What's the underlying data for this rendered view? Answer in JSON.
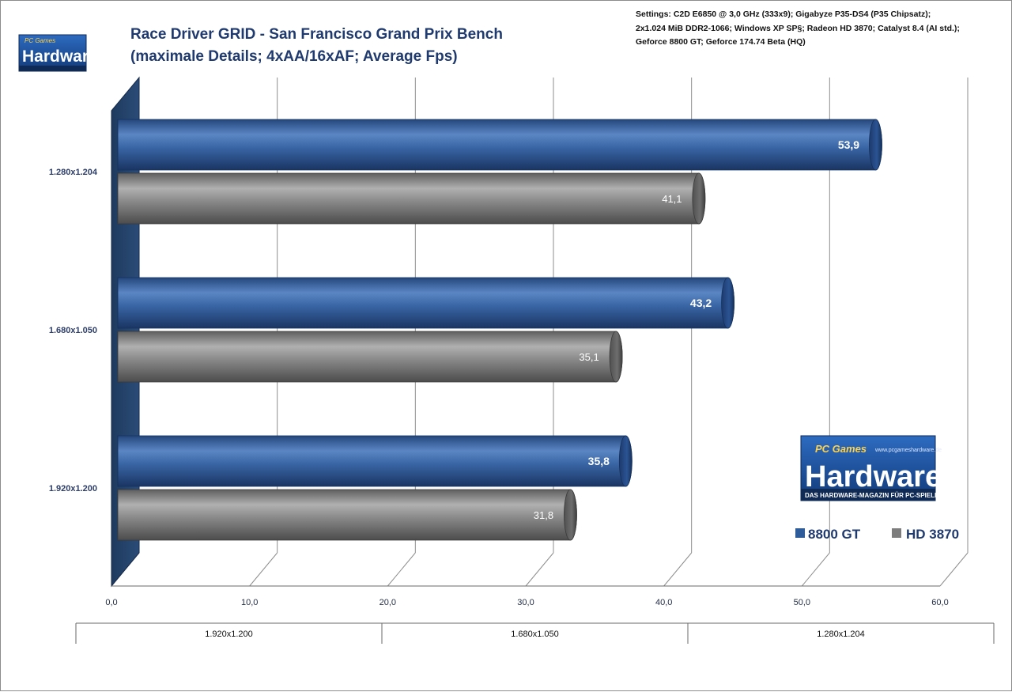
{
  "chart_data": {
    "type": "bar",
    "orientation": "horizontal",
    "title": [
      "Race Driver GRID - San Francisco Grand Prix Bench",
      "(maximale Details; 4xAA/16xAF; Average Fps)"
    ],
    "settings_note": [
      "Settings: C2D E6850 @ 3,0 GHz (333x9); Gigabyze  P35-DS4 (P35 Chipsatz);",
      "2x1.024 MiB DDR2-1066;  Windows XP SP§; Radeon HD 3870; Catalyst 8.4 (AI std.);",
      "Geforce 8800 GT; Geforce 174.74 Beta (HQ)"
    ],
    "categories": [
      "1.280x1.204",
      "1.680x1.050",
      "1.920x1.200"
    ],
    "series": [
      {
        "name": "8800 GT",
        "color": "#2e5b9a",
        "values": [
          53.9,
          43.2,
          35.8
        ],
        "labels": [
          "53,9",
          "43,2",
          "35,8"
        ]
      },
      {
        "name": "HD 3870",
        "color": "#7d7d7d",
        "values": [
          41.1,
          35.1,
          31.8
        ],
        "labels": [
          "41,1",
          "35,1",
          "31,8"
        ]
      }
    ],
    "xlim": [
      0,
      60
    ],
    "ticks": [
      0,
      10,
      20,
      30,
      40,
      50,
      60
    ],
    "tick_labels": [
      "0,0",
      "10,0",
      "20,0",
      "30,0",
      "40,0",
      "50,0",
      "60,0"
    ],
    "table_row": [
      "1.920x1.200",
      "1.680x1.050",
      "1.280x1.204"
    ],
    "grid": true,
    "legend_position": "bottom-right"
  },
  "logo": {
    "top_text": "PC Games",
    "main_text": "Hardware",
    "url_text": "www.pcgameshardware.de",
    "tagline": "DAS HARDWARE-MAGAZIN FÜR PC-SPIELER"
  }
}
